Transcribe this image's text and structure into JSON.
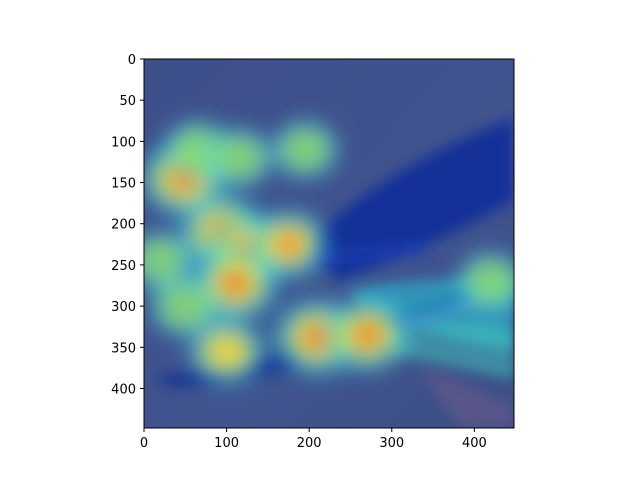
{
  "chart_data": {
    "type": "heatmap",
    "title": "",
    "xlabel": "",
    "ylabel": "",
    "xlim": [
      0,
      448
    ],
    "ylim": [
      448,
      0
    ],
    "x_ticks": [
      0,
      100,
      200,
      300,
      400
    ],
    "y_ticks": [
      0,
      50,
      100,
      150,
      200,
      250,
      300,
      350,
      400
    ],
    "grid": false,
    "colormap": "jet",
    "background_color": "#3c4f8c",
    "hotspots": [
      {
        "x": 48,
        "y": 145,
        "intensity": 1.0
      },
      {
        "x": 95,
        "y": 210,
        "intensity": 1.0
      },
      {
        "x": 125,
        "y": 230,
        "intensity": 0.75
      },
      {
        "x": 175,
        "y": 225,
        "intensity": 0.7
      },
      {
        "x": 110,
        "y": 272,
        "intensity": 1.0
      },
      {
        "x": 210,
        "y": 338,
        "intensity": 1.0
      },
      {
        "x": 270,
        "y": 335,
        "intensity": 0.9
      },
      {
        "x": 100,
        "y": 355,
        "intensity": 0.6
      },
      {
        "x": 65,
        "y": 110,
        "intensity": 0.35
      },
      {
        "x": 115,
        "y": 120,
        "intensity": 0.35
      },
      {
        "x": 195,
        "y": 110,
        "intensity": 0.3
      },
      {
        "x": 50,
        "y": 300,
        "intensity": 0.45
      },
      {
        "x": 20,
        "y": 245,
        "intensity": 0.35
      },
      {
        "x": 420,
        "y": 270,
        "intensity": 0.35
      }
    ]
  }
}
